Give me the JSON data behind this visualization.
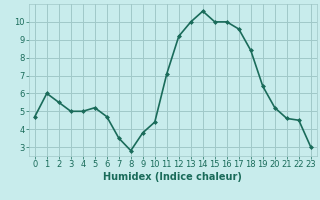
{
  "x": [
    0,
    1,
    2,
    3,
    4,
    5,
    6,
    7,
    8,
    9,
    10,
    11,
    12,
    13,
    14,
    15,
    16,
    17,
    18,
    19,
    20,
    21,
    22,
    23
  ],
  "y": [
    4.7,
    6.0,
    5.5,
    5.0,
    5.0,
    5.2,
    4.7,
    3.5,
    2.8,
    3.8,
    4.4,
    7.1,
    9.2,
    10.0,
    10.6,
    10.0,
    10.0,
    9.6,
    8.4,
    6.4,
    5.2,
    4.6,
    4.5,
    3.0
  ],
  "line_color": "#1a6b5a",
  "marker": "D",
  "marker_size": 2,
  "background_color": "#c8ecec",
  "grid_color": "#a0c8c8",
  "xlabel": "Humidex (Indice chaleur)",
  "ylim": [
    2.5,
    11.0
  ],
  "xlim": [
    -0.5,
    23.5
  ],
  "yticks": [
    3,
    4,
    5,
    6,
    7,
    8,
    9,
    10
  ],
  "xticks": [
    0,
    1,
    2,
    3,
    4,
    5,
    6,
    7,
    8,
    9,
    10,
    11,
    12,
    13,
    14,
    15,
    16,
    17,
    18,
    19,
    20,
    21,
    22,
    23
  ],
  "xlabel_fontsize": 7,
  "tick_fontsize": 6,
  "line_width": 1.2
}
